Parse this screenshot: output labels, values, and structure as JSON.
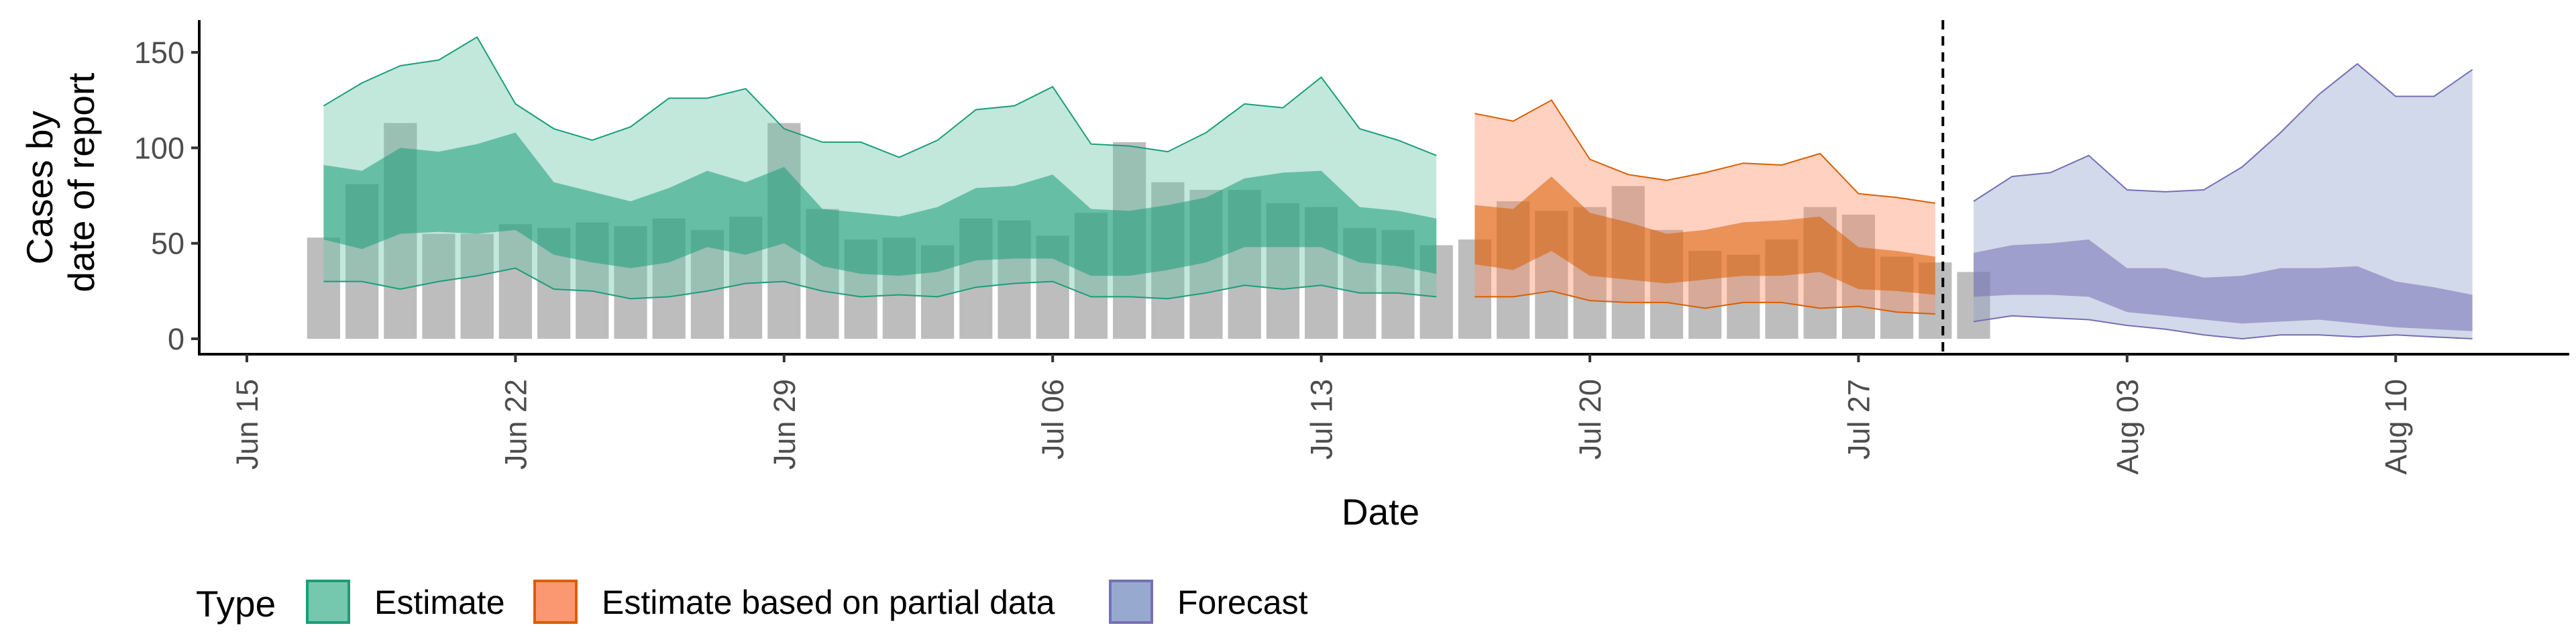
{
  "chart_data": {
    "type": "area",
    "xlabel": "Date",
    "ylabel_lines": [
      "Cases by",
      "date of report"
    ],
    "ylim": [
      0,
      160
    ],
    "yticks": [
      0,
      50,
      100,
      150
    ],
    "x_start": "Jun 15",
    "x_ticks": [
      {
        "label": "Jun 15",
        "day": 0
      },
      {
        "label": "Jun 22",
        "day": 7
      },
      {
        "label": "Jun 29",
        "day": 14
      },
      {
        "label": "Jul 06",
        "day": 21
      },
      {
        "label": "Jul 13",
        "day": 28
      },
      {
        "label": "Jul 20",
        "day": 35
      },
      {
        "label": "Jul 27",
        "day": 42
      },
      {
        "label": "Aug 03",
        "day": 49
      },
      {
        "label": "Aug 10",
        "day": 56
      }
    ],
    "forecast_start_day": 44.2,
    "reported_cases": {
      "first_day": 2,
      "values": [
        53,
        81,
        113,
        55,
        55,
        60,
        58,
        61,
        59,
        63,
        57,
        64,
        113,
        68,
        52,
        53,
        49,
        63,
        62,
        54,
        66,
        103,
        82,
        78,
        78,
        71,
        69,
        58,
        57,
        49,
        52,
        72,
        67,
        69,
        80,
        57,
        46,
        44,
        52,
        69,
        65,
        43,
        40,
        35
      ]
    },
    "series": [
      {
        "name": "Estimate",
        "color": "#1b9e77",
        "fill": "#66c2a5",
        "days": [
          2,
          3,
          4,
          5,
          6,
          7,
          8,
          9,
          10,
          11,
          12,
          13,
          14,
          15,
          16,
          17,
          18,
          19,
          20,
          21,
          22,
          23,
          24,
          25,
          26,
          27,
          28,
          29,
          30,
          31
        ],
        "lower90": [
          30,
          30,
          26,
          30,
          33,
          37,
          26,
          25,
          21,
          22,
          25,
          29,
          30,
          25,
          22,
          23,
          22,
          27,
          29,
          30,
          22,
          22,
          21,
          24,
          28,
          26,
          28,
          24,
          24,
          22
        ],
        "lower50": [
          52,
          47,
          55,
          56,
          55,
          57,
          44,
          40,
          37,
          40,
          48,
          44,
          50,
          38,
          34,
          33,
          35,
          41,
          42,
          42,
          33,
          33,
          36,
          40,
          48,
          48,
          48,
          40,
          38,
          34
        ],
        "upper50": [
          91,
          88,
          100,
          98,
          102,
          108,
          82,
          77,
          72,
          79,
          88,
          82,
          90,
          68,
          66,
          64,
          69,
          79,
          80,
          86,
          68,
          67,
          70,
          74,
          84,
          87,
          88,
          69,
          67,
          63
        ],
        "upper90": [
          122,
          134,
          143,
          146,
          158,
          123,
          110,
          104,
          111,
          126,
          126,
          131,
          110,
          103,
          103,
          95,
          104,
          120,
          122,
          132,
          102,
          101,
          98,
          108,
          123,
          121,
          137,
          110,
          104,
          96
        ]
      },
      {
        "name": "Estimate based on partial data",
        "color": "#d95f02",
        "fill": "#fc8d62",
        "days": [
          32,
          33,
          34,
          35,
          36,
          37,
          38,
          39,
          40,
          41,
          42,
          43,
          44
        ],
        "lower90": [
          22,
          22,
          25,
          20,
          19,
          19,
          16,
          19,
          19,
          16,
          17,
          14,
          13
        ],
        "lower50": [
          39,
          36,
          46,
          33,
          31,
          29,
          31,
          33,
          33,
          35,
          26,
          25,
          23
        ],
        "upper50": [
          70,
          68,
          85,
          66,
          61,
          55,
          57,
          61,
          62,
          64,
          48,
          46,
          43
        ],
        "upper90": [
          118,
          114,
          125,
          94,
          86,
          83,
          87,
          92,
          91,
          97,
          76,
          74,
          71
        ]
      },
      {
        "name": "Forecast",
        "color": "#7570b3",
        "fill": "#8da0cb",
        "days": [
          45,
          46,
          47,
          48,
          49,
          50,
          51,
          52,
          53,
          54,
          55,
          56,
          57,
          58
        ],
        "lower90": [
          9,
          12,
          11,
          10,
          7,
          5,
          2,
          0,
          2,
          2,
          1,
          2,
          1,
          0
        ],
        "lower50": [
          22,
          23,
          23,
          22,
          14,
          12,
          10,
          8,
          9,
          10,
          8,
          6,
          5,
          4
        ],
        "upper50": [
          45,
          49,
          50,
          52,
          37,
          37,
          32,
          33,
          37,
          37,
          38,
          30,
          27,
          23
        ],
        "upper90": [
          72,
          85,
          87,
          96,
          78,
          77,
          78,
          90,
          108,
          128,
          144,
          127,
          127,
          141
        ]
      }
    ],
    "legend": {
      "title": "Type",
      "position": "bottom",
      "items": [
        "Estimate",
        "Estimate based on partial data",
        "Forecast"
      ]
    },
    "grid": false
  }
}
